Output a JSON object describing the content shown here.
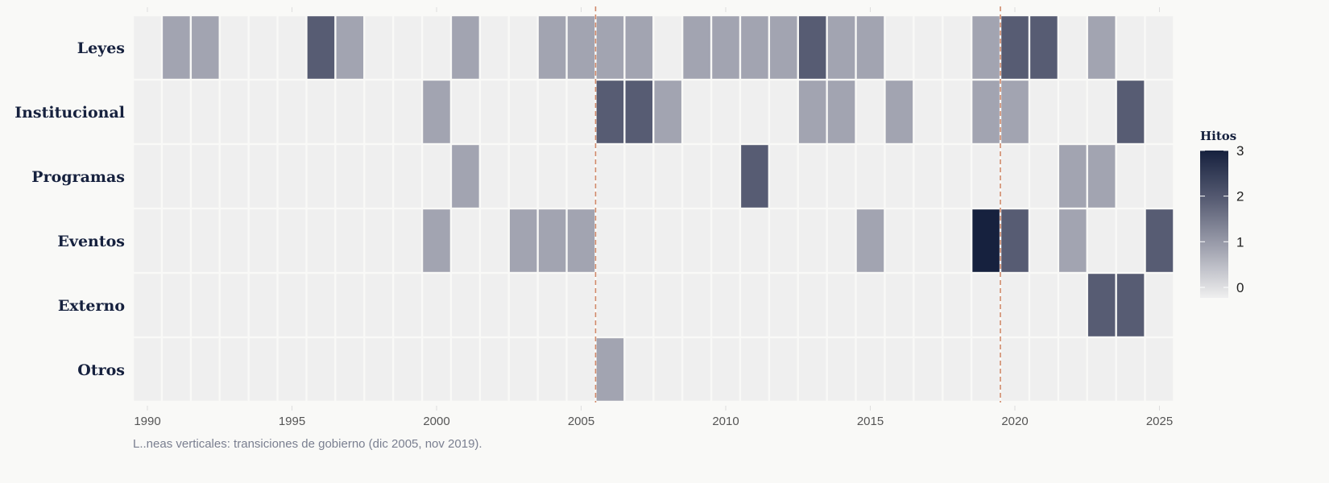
{
  "chart_data": {
    "type": "heatmap",
    "title": "",
    "xlabel": "",
    "ylabel": "",
    "x": [
      1990,
      1991,
      1992,
      1993,
      1994,
      1995,
      1996,
      1997,
      1998,
      1999,
      2000,
      2001,
      2002,
      2003,
      2004,
      2005,
      2006,
      2007,
      2008,
      2009,
      2010,
      2011,
      2012,
      2013,
      2014,
      2015,
      2016,
      2017,
      2018,
      2019,
      2020,
      2021,
      2022,
      2023,
      2024,
      2025
    ],
    "x_ticks": [
      "1990",
      "1995",
      "2000",
      "2005",
      "2010",
      "2015",
      "2020",
      "2025"
    ],
    "x_tick_values": [
      1990,
      1995,
      2000,
      2005,
      2010,
      2015,
      2020,
      2025
    ],
    "rows": [
      "Leyes",
      "Institucional",
      "Programas",
      "Eventos",
      "Externo",
      "Otros"
    ],
    "nonzero": {
      "Leyes": {
        "1991": 1,
        "1992": 1,
        "1996": 2,
        "1997": 1,
        "2001": 1,
        "2004": 1,
        "2005": 1,
        "2006": 1,
        "2007": 1,
        "2009": 1,
        "2010": 1,
        "2011": 1,
        "2012": 1,
        "2013": 2,
        "2014": 1,
        "2015": 1,
        "2019": 1,
        "2020": 2,
        "2021": 2,
        "2023": 1
      },
      "Institucional": {
        "2000": 1,
        "2006": 2,
        "2007": 2,
        "2008": 1,
        "2013": 1,
        "2014": 1,
        "2016": 1,
        "2019": 1,
        "2020": 1,
        "2024": 2
      },
      "Programas": {
        "2001": 1,
        "2011": 2,
        "2022": 1,
        "2023": 1
      },
      "Eventos": {
        "2000": 1,
        "2003": 1,
        "2004": 1,
        "2005": 1,
        "2015": 1,
        "2019": 3,
        "2020": 2,
        "2022": 1,
        "2025": 2
      },
      "Externo": {
        "2023": 2,
        "2024": 2
      },
      "Otros": {
        "2006": 1
      }
    },
    "vlines": [
      2005.5,
      2019.5
    ],
    "legend": {
      "title": "Hitos",
      "range": [
        0,
        3
      ],
      "ticks": [
        "0",
        "1",
        "2",
        "3"
      ],
      "placement": "right"
    },
    "colors": {
      "zero": "#efefef",
      "one": "#a2a4b1",
      "two": "#575c73",
      "three": "#16213e",
      "vline": "#d0896a"
    },
    "caption": "L..neas verticales: transiciones de gobierno (dic 2005, nov 2019)."
  }
}
